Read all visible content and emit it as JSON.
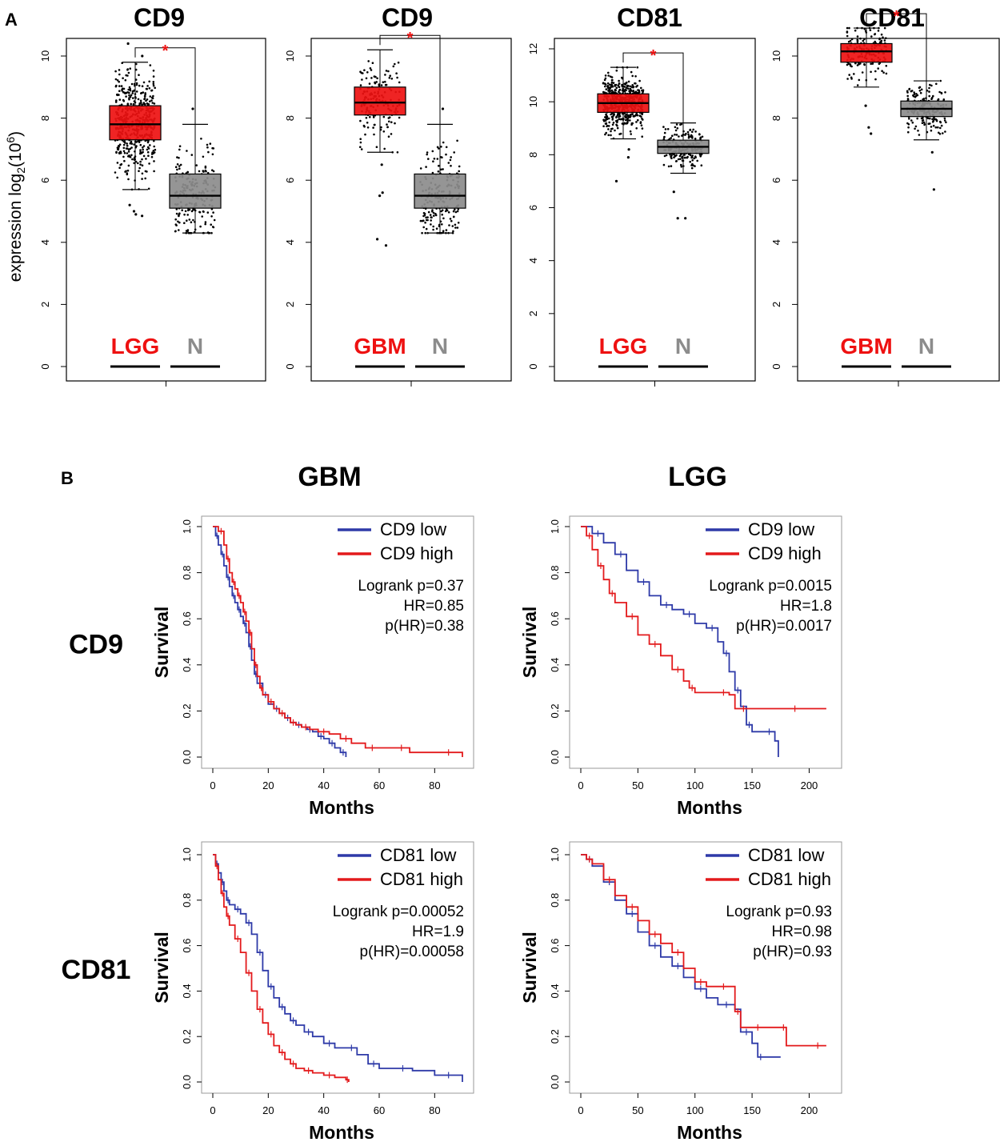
{
  "panel_a_label": "A",
  "panel_b_label": "B",
  "colors": {
    "tumor": "#ee1111",
    "normal": "#8c8c8c",
    "low": "#2e3aa8",
    "high": "#e31a1c",
    "star": "#ee1111"
  },
  "chart_data": [
    {
      "type": "box",
      "panel": "A",
      "title": "CD9",
      "ylabel": "expression log2(10^6)",
      "ylim": [
        0,
        11
      ],
      "yticks": [
        0,
        2,
        4,
        6,
        8,
        10
      ],
      "significance": "*",
      "groups": [
        {
          "name": "LGG",
          "color": "tumor",
          "q1": 7.3,
          "median": 7.8,
          "q3": 8.4,
          "whisker_low": 5.7,
          "whisker_high": 9.8,
          "n_points": 520,
          "outliers": [
            4.9,
            5.0,
            5.2,
            4.85,
            10.4,
            10.0
          ]
        },
        {
          "name": "N",
          "color": "normal",
          "q1": 5.1,
          "median": 5.5,
          "q3": 6.2,
          "whisker_low": 4.3,
          "whisker_high": 7.8,
          "n_points": 200,
          "outliers": [
            8.3
          ]
        }
      ]
    },
    {
      "type": "box",
      "panel": "A",
      "title": "CD9",
      "ylabel": "",
      "ylim": [
        0,
        11
      ],
      "yticks": [
        0,
        2,
        4,
        6,
        8,
        10
      ],
      "significance": "*",
      "groups": [
        {
          "name": "GBM",
          "color": "tumor",
          "q1": 8.1,
          "median": 8.5,
          "q3": 9.0,
          "whisker_low": 6.9,
          "whisker_high": 10.2,
          "n_points": 165,
          "outliers": [
            5.5,
            5.6,
            4.1,
            3.9,
            6.5
          ]
        },
        {
          "name": "N",
          "color": "normal",
          "q1": 5.1,
          "median": 5.5,
          "q3": 6.2,
          "whisker_low": 4.3,
          "whisker_high": 7.8,
          "n_points": 200,
          "outliers": [
            8.3
          ]
        }
      ]
    },
    {
      "type": "box",
      "panel": "A",
      "title": "CD81",
      "ylabel": "",
      "ylim": [
        0,
        12
      ],
      "yticks": [
        0,
        2,
        4,
        6,
        8,
        10,
        12
      ],
      "significance": "*",
      "groups": [
        {
          "name": "LGG",
          "color": "tumor",
          "q1": 9.6,
          "median": 9.95,
          "q3": 10.3,
          "whisker_low": 8.6,
          "whisker_high": 11.3,
          "n_points": 520,
          "outliers": [
            7.0,
            7.9,
            8.2
          ]
        },
        {
          "name": "N",
          "color": "normal",
          "q1": 8.05,
          "median": 8.3,
          "q3": 8.55,
          "whisker_low": 7.3,
          "whisker_high": 9.2,
          "n_points": 200,
          "outliers": [
            5.6,
            5.6,
            6.6
          ]
        }
      ]
    },
    {
      "type": "box",
      "panel": "A",
      "title": "CD81",
      "ylabel": "",
      "ylim": [
        0,
        11
      ],
      "yticks": [
        0,
        2,
        4,
        6,
        8,
        10
      ],
      "significance": "*",
      "groups": [
        {
          "name": "GBM",
          "color": "tumor",
          "q1": 9.8,
          "median": 10.15,
          "q3": 10.4,
          "whisker_low": 9.0,
          "whisker_high": 10.9,
          "n_points": 165,
          "outliers": [
            7.5,
            7.7,
            8.4
          ]
        },
        {
          "name": "N",
          "color": "normal",
          "q1": 8.05,
          "median": 8.3,
          "q3": 8.55,
          "whisker_low": 7.3,
          "whisker_high": 9.2,
          "n_points": 200,
          "outliers": [
            5.7,
            6.9
          ]
        }
      ]
    },
    {
      "type": "line",
      "panel": "B",
      "column_title": "GBM",
      "row_label": "CD9",
      "xlabel": "Months",
      "ylabel": "Survival",
      "xlim": [
        0,
        90
      ],
      "xticks": [
        0,
        20,
        40,
        60,
        80
      ],
      "ylim": [
        0,
        1
      ],
      "yticks": [
        "0.0",
        "0.2",
        "0.4",
        "0.6",
        "0.8",
        "1.0"
      ],
      "legend": [
        "CD9 low",
        "CD9 high"
      ],
      "stats": [
        "Logrank p=0.37",
        "HR=0.85",
        "p(HR)=0.38"
      ],
      "series": [
        {
          "name": "CD9 low",
          "color": "low",
          "x": [
            0,
            1,
            2,
            3,
            4,
            5,
            6,
            7,
            8,
            9,
            10,
            11,
            12,
            13,
            14,
            15,
            16,
            18,
            20,
            22,
            24,
            26,
            28,
            30,
            32,
            34,
            36,
            38,
            40,
            42,
            44,
            46,
            48
          ],
          "y": [
            1.0,
            0.96,
            0.92,
            0.88,
            0.83,
            0.78,
            0.74,
            0.7,
            0.67,
            0.64,
            0.61,
            0.58,
            0.54,
            0.48,
            0.42,
            0.36,
            0.32,
            0.27,
            0.23,
            0.21,
            0.19,
            0.17,
            0.15,
            0.14,
            0.13,
            0.12,
            0.11,
            0.09,
            0.08,
            0.06,
            0.04,
            0.02,
            0.0
          ]
        },
        {
          "name": "CD9 high",
          "color": "high",
          "x": [
            0,
            2,
            4,
            5,
            6,
            7,
            8,
            9,
            10,
            11,
            12,
            13,
            14,
            15,
            16,
            17,
            18,
            20,
            22,
            24,
            26,
            28,
            30,
            32,
            35,
            38,
            42,
            46,
            50,
            55,
            60,
            65,
            71,
            80,
            90
          ],
          "y": [
            1.0,
            0.98,
            0.92,
            0.86,
            0.8,
            0.76,
            0.73,
            0.7,
            0.67,
            0.63,
            0.59,
            0.54,
            0.47,
            0.4,
            0.35,
            0.3,
            0.27,
            0.24,
            0.21,
            0.19,
            0.17,
            0.15,
            0.14,
            0.13,
            0.12,
            0.11,
            0.1,
            0.08,
            0.06,
            0.04,
            0.04,
            0.04,
            0.02,
            0.02,
            0.0
          ]
        }
      ]
    },
    {
      "type": "line",
      "panel": "B",
      "column_title": "LGG",
      "row_label": "",
      "xlabel": "Months",
      "ylabel": "Survival",
      "xlim": [
        0,
        220
      ],
      "xticks": [
        0,
        50,
        100,
        150,
        200
      ],
      "ylim": [
        0,
        1
      ],
      "yticks": [
        "0.0",
        "0.2",
        "0.4",
        "0.6",
        "0.8",
        "1.0"
      ],
      "legend": [
        "CD9 low",
        "CD9 high"
      ],
      "stats": [
        "Logrank p=0.0015",
        "HR=1.8",
        "p(HR)=0.0017"
      ],
      "series": [
        {
          "name": "CD9 low",
          "color": "low",
          "x": [
            0,
            10,
            20,
            30,
            40,
            50,
            60,
            70,
            80,
            90,
            100,
            110,
            120,
            125,
            130,
            135,
            140,
            145,
            150,
            160,
            170,
            173
          ],
          "y": [
            1.0,
            0.97,
            0.93,
            0.88,
            0.81,
            0.76,
            0.7,
            0.66,
            0.64,
            0.62,
            0.58,
            0.56,
            0.5,
            0.45,
            0.37,
            0.29,
            0.22,
            0.14,
            0.11,
            0.11,
            0.07,
            0.0
          ]
        },
        {
          "name": "CD9 high",
          "color": "high",
          "x": [
            0,
            5,
            10,
            15,
            20,
            25,
            30,
            40,
            50,
            60,
            70,
            80,
            90,
            95,
            100,
            120,
            130,
            135,
            150,
            175,
            200,
            215
          ],
          "y": [
            1.0,
            0.96,
            0.9,
            0.83,
            0.77,
            0.71,
            0.67,
            0.61,
            0.53,
            0.49,
            0.44,
            0.38,
            0.33,
            0.3,
            0.28,
            0.28,
            0.27,
            0.21,
            0.21,
            0.21,
            0.21,
            0.21
          ]
        }
      ]
    },
    {
      "type": "line",
      "panel": "B",
      "column_title": "",
      "row_label": "CD81",
      "xlabel": "Months",
      "ylabel": "Survival",
      "xlim": [
        0,
        90
      ],
      "xticks": [
        0,
        20,
        40,
        60,
        80
      ],
      "ylim": [
        0,
        1
      ],
      "yticks": [
        "0.0",
        "0.2",
        "0.4",
        "0.6",
        "0.8",
        "1.0"
      ],
      "legend": [
        "CD81 low",
        "CD81 high"
      ],
      "stats": [
        "Logrank p=0.00052",
        "HR=1.9",
        "p(HR)=0.00058"
      ],
      "series": [
        {
          "name": "CD81 low",
          "color": "low",
          "x": [
            0,
            1,
            2,
            3,
            4,
            5,
            6,
            8,
            10,
            12,
            14,
            16,
            18,
            20,
            22,
            24,
            26,
            28,
            30,
            33,
            36,
            40,
            44,
            48,
            52,
            56,
            60,
            65,
            72,
            80,
            90
          ],
          "y": [
            1.0,
            0.96,
            0.92,
            0.88,
            0.84,
            0.8,
            0.78,
            0.76,
            0.74,
            0.7,
            0.65,
            0.57,
            0.49,
            0.42,
            0.37,
            0.33,
            0.3,
            0.27,
            0.25,
            0.22,
            0.2,
            0.17,
            0.15,
            0.15,
            0.12,
            0.08,
            0.06,
            0.06,
            0.05,
            0.03,
            0.0
          ]
        },
        {
          "name": "CD81 high",
          "color": "high",
          "x": [
            0,
            1,
            2,
            3,
            4,
            5,
            6,
            8,
            10,
            12,
            14,
            16,
            18,
            20,
            22,
            24,
            26,
            28,
            30,
            33,
            36,
            40,
            44,
            48,
            49
          ],
          "y": [
            1.0,
            0.95,
            0.89,
            0.83,
            0.77,
            0.73,
            0.69,
            0.63,
            0.57,
            0.48,
            0.4,
            0.32,
            0.26,
            0.21,
            0.16,
            0.13,
            0.1,
            0.08,
            0.06,
            0.05,
            0.04,
            0.03,
            0.02,
            0.01,
            0.0
          ]
        }
      ]
    },
    {
      "type": "line",
      "panel": "B",
      "column_title": "",
      "row_label": "",
      "xlabel": "Months",
      "ylabel": "Survival",
      "xlim": [
        0,
        220
      ],
      "xticks": [
        0,
        50,
        100,
        150,
        200
      ],
      "ylim": [
        0,
        1
      ],
      "yticks": [
        "0.0",
        "0.2",
        "0.4",
        "0.6",
        "0.8",
        "1.0"
      ],
      "legend": [
        "CD81 low",
        "CD81 high"
      ],
      "stats": [
        "Logrank p=0.93",
        "HR=0.98",
        "p(HR)=0.93"
      ],
      "series": [
        {
          "name": "CD81 low",
          "color": "low",
          "x": [
            0,
            5,
            10,
            20,
            30,
            40,
            50,
            60,
            70,
            80,
            90,
            100,
            110,
            120,
            135,
            140,
            150,
            155,
            160,
            175
          ],
          "y": [
            1.0,
            0.98,
            0.95,
            0.88,
            0.8,
            0.74,
            0.66,
            0.6,
            0.55,
            0.51,
            0.46,
            0.41,
            0.37,
            0.34,
            0.32,
            0.22,
            0.17,
            0.11,
            0.11,
            0.11
          ]
        },
        {
          "name": "CD81 high",
          "color": "high",
          "x": [
            0,
            5,
            10,
            20,
            30,
            40,
            50,
            60,
            70,
            80,
            90,
            100,
            110,
            120,
            130,
            135,
            140,
            150,
            160,
            175,
            180,
            200,
            215
          ],
          "y": [
            1.0,
            0.98,
            0.96,
            0.89,
            0.82,
            0.77,
            0.71,
            0.65,
            0.61,
            0.57,
            0.5,
            0.44,
            0.42,
            0.42,
            0.42,
            0.31,
            0.24,
            0.24,
            0.24,
            0.24,
            0.16,
            0.16,
            0.16
          ]
        }
      ]
    }
  ]
}
